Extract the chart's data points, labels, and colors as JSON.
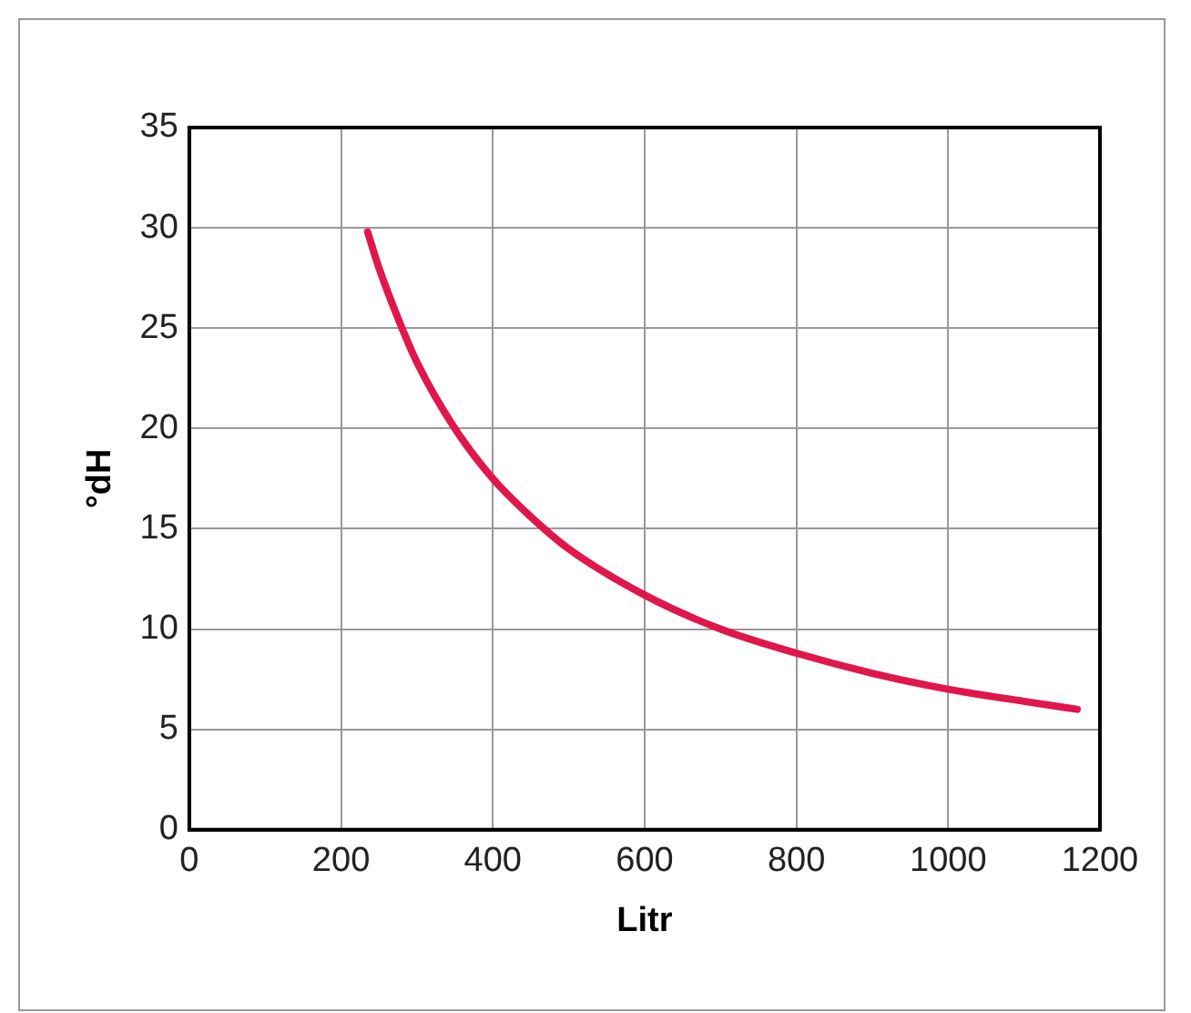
{
  "chart_data": {
    "type": "line",
    "xlabel": "Litr",
    "ylabel": "°dH",
    "x": [
      235,
      250,
      275,
      300,
      350,
      400,
      450,
      500,
      600,
      700,
      800,
      900,
      1000,
      1100,
      1170
    ],
    "series": [
      {
        "color": "#e0174d",
        "values": [
          29.8,
          28,
          25.5,
          23.3,
          20,
          17.5,
          15.6,
          14,
          11.7,
          10,
          8.8,
          7.8,
          7,
          6.4,
          6
        ]
      }
    ],
    "xlim": [
      0,
      1200
    ],
    "xticks": [
      0,
      200,
      400,
      600,
      800,
      1000,
      1200
    ],
    "ylim": [
      0,
      35
    ],
    "yticks": [
      0,
      5,
      10,
      15,
      20,
      25,
      30,
      35
    ],
    "grid": true,
    "legend": false,
    "marker": "none",
    "line_style": "solid"
  }
}
